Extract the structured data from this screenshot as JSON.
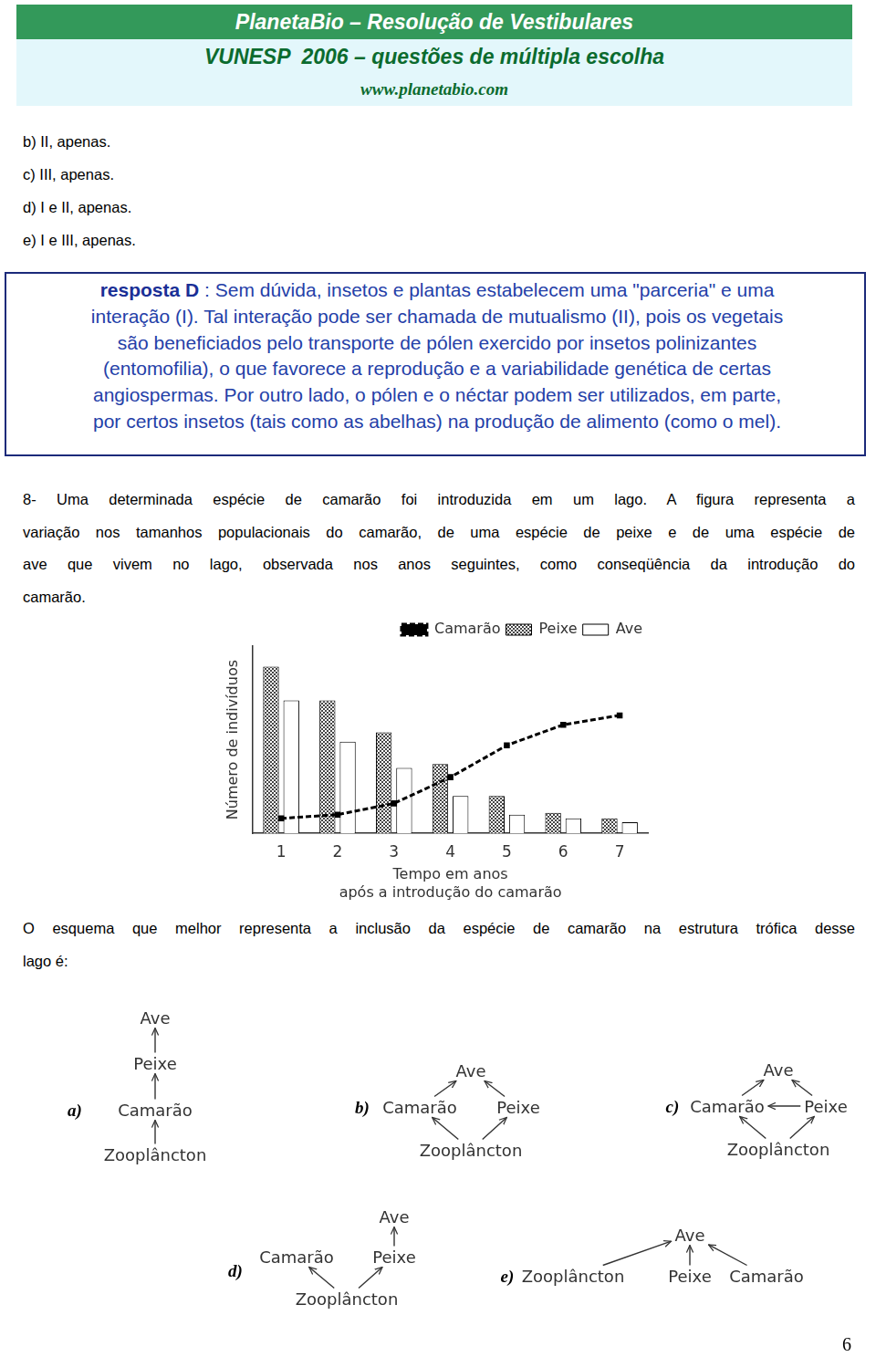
{
  "header": {
    "title": "PlanetaBio – Resolução de Vestibulares",
    "subtitle": "VUNESP  2006 – questões de múltipla escolha",
    "url": "www.planetabio.com"
  },
  "previous_options": [
    "b) II, apenas.",
    "c) III, apenas.",
    "d) I e II, apenas.",
    "e) I e III, apenas."
  ],
  "answer_box": {
    "label": "resposta D",
    "lines": [
      ": Sem dúvida, insetos e plantas estabelecem uma \"parceria\" e uma",
      "interação (I). Tal interação pode ser chamada de mutualismo (II), pois os vegetais",
      "são beneficiados pelo transporte de pólen exercido por insetos polinizantes",
      "(entomofilia), o que favorece a reprodução e a variabilidade genética de certas",
      "angiospermas. Por outro lado, o pólen e o néctar podem ser utilizados, em parte,",
      "por certos insetos (tais como as abelhas) na produção de alimento (como o mel)."
    ]
  },
  "question": {
    "lines": [
      "8- Uma determinada espécie de camarão foi introduzida em um lago. A figura representa a",
      "variação nos tamanhos populacionais do camarão, de uma espécie de peixe e de uma espécie de",
      "ave que vivem no lago, observada nos anos seguintes, como conseqüência da introdução do",
      "camarão."
    ],
    "prompt_lines": [
      "O esquema que melhor representa a inclusão da espécie de camarão na estrutura trófica desse",
      "lago é:"
    ]
  },
  "chart_data": {
    "type": "bar",
    "y_label": "Número de indivíduos",
    "x_label": [
      "Tempo em anos",
      "após a introdução do camarão"
    ],
    "categories": [
      "1",
      "2",
      "3",
      "4",
      "5",
      "6",
      "7"
    ],
    "series": [
      {
        "name": "Camarão",
        "type": "line",
        "color": "#000000",
        "marker": "square",
        "line_style": "dashed",
        "values": [
          8,
          10,
          16,
          30,
          47,
          58,
          63
        ]
      },
      {
        "name": "Peixe",
        "type": "bar",
        "color": "#444444",
        "values": [
          89,
          71,
          54,
          37,
          20,
          11,
          8
        ]
      },
      {
        "name": "Ave",
        "type": "bar",
        "color": "#ffffff",
        "values": [
          71,
          49,
          35,
          20,
          10,
          8,
          6
        ]
      }
    ],
    "ylim": [
      0,
      100
    ],
    "yticks": [],
    "tick_labels": "x",
    "grid": false,
    "legend": "top-right"
  },
  "options": [
    {
      "letter": "a)",
      "nodes": [
        "Ave",
        "Peixe",
        "Camarão",
        "Zooplâncton"
      ],
      "edges": [
        [
          "Zooplâncton",
          "Camarão"
        ],
        [
          "Camarão",
          "Peixe"
        ],
        [
          "Peixe",
          "Ave"
        ]
      ]
    },
    {
      "letter": "b)",
      "nodes": [
        "Ave",
        "Camarão",
        "Peixe",
        "Zooplâncton"
      ],
      "edges": [
        [
          "Zooplâncton",
          "Camarão"
        ],
        [
          "Zooplâncton",
          "Peixe"
        ],
        [
          "Camarão",
          "Ave"
        ],
        [
          "Peixe",
          "Ave"
        ]
      ]
    },
    {
      "letter": "c)",
      "nodes": [
        "Ave",
        "Camarão",
        "Peixe",
        "Zooplâncton"
      ],
      "edges": [
        [
          "Zooplâncton",
          "Camarão"
        ],
        [
          "Zooplâncton",
          "Peixe"
        ],
        [
          "Camarão",
          "Ave"
        ],
        [
          "Peixe",
          "Ave"
        ],
        [
          "Peixe",
          "Camarão"
        ]
      ]
    },
    {
      "letter": "d)",
      "nodes": [
        "Ave",
        "Camarão",
        "Peixe",
        "Zooplâncton"
      ],
      "edges": [
        [
          "Zooplâncton",
          "Camarão"
        ],
        [
          "Zooplâncton",
          "Peixe"
        ],
        [
          "Peixe",
          "Ave"
        ]
      ]
    },
    {
      "letter": "e)",
      "nodes": [
        "Zooplâncton",
        "Ave",
        "Peixe",
        "Camarão"
      ],
      "edges": [
        [
          "Zooplâncton",
          "Ave"
        ],
        [
          "Peixe",
          "Ave"
        ],
        [
          "Camarão",
          "Ave"
        ]
      ]
    }
  ],
  "page_number": "6"
}
